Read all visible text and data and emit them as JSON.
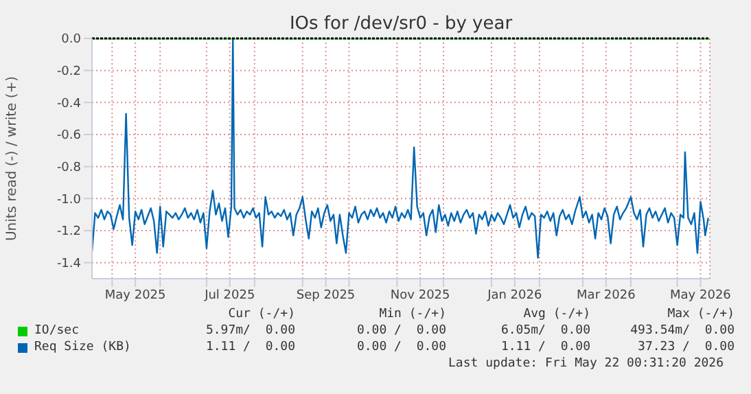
{
  "chart_data": {
    "type": "line",
    "title": "IOs for /dev/sr0 - by year",
    "ylabel": "Units read (-) / write (+)",
    "xlim": [
      "2025-04-18",
      "2026-05-22"
    ],
    "xticks": [
      {
        "value": "2025-05-01",
        "label": null
      },
      {
        "value": "2025-05-16",
        "label": "May 2025"
      },
      {
        "value": "2025-06-01",
        "label": null
      },
      {
        "value": "2025-07-01",
        "label": null
      },
      {
        "value": "2025-07-16",
        "label": "Jul 2025"
      },
      {
        "value": "2025-08-01",
        "label": null
      },
      {
        "value": "2025-09-01",
        "label": null
      },
      {
        "value": "2025-09-16",
        "label": "Sep 2025"
      },
      {
        "value": "2025-10-01",
        "label": null
      },
      {
        "value": "2025-11-01",
        "label": null
      },
      {
        "value": "2025-11-16",
        "label": "Nov 2025"
      },
      {
        "value": "2025-12-01",
        "label": null
      },
      {
        "value": "2026-01-01",
        "label": null
      },
      {
        "value": "2026-01-16",
        "label": "Jan 2026"
      },
      {
        "value": "2026-02-01",
        "label": null
      },
      {
        "value": "2026-03-01",
        "label": null
      },
      {
        "value": "2026-03-16",
        "label": "Mar 2026"
      },
      {
        "value": "2026-04-01",
        "label": null
      },
      {
        "value": "2026-05-01",
        "label": null
      },
      {
        "value": "2026-05-16",
        "label": "May 2026"
      }
    ],
    "ylim": [
      -1.5,
      0
    ],
    "yticks": [
      {
        "value": 0,
        "label": "0.0"
      },
      -0.2,
      -0.4,
      -0.6,
      -0.8,
      {
        "value": -1,
        "label": "-1.0"
      },
      -1.2,
      -1.4
    ],
    "grid": true,
    "legend": "bottom",
    "marker": "none",
    "line_style": "solid",
    "ref_lines": [
      {
        "axis": "y",
        "value": 0,
        "color": "#000000"
      }
    ],
    "annotations": [
      "Cur (-/+)",
      "Min (-/+)",
      "Avg (-/+)",
      "Max (-/+)",
      "5.97m/  0.00",
      "0.00 /  0.00",
      "6.05m/  0.00",
      "493.54m/  0.00",
      "1.11 /  0.00",
      "0.00 /  0.00",
      "1.11 /  0.00",
      "37.23 /  0.00",
      "Last update: Fri May 22 00:31:20 2026"
    ],
    "series": [
      {
        "name": "IO/sec",
        "color": "#00cc00",
        "x": [
          "2025-04-18",
          "2026-05-22"
        ],
        "values": [
          0,
          0
        ]
      },
      {
        "name": "Req Size (KB)",
        "color": "#0066b3",
        "x": [
          "2025-04-18",
          "2025-04-20",
          "2025-04-22",
          "2025-04-24",
          "2025-04-26",
          "2025-04-28",
          "2025-04-30",
          "2025-05-02",
          "2025-05-04",
          "2025-05-06",
          "2025-05-08",
          "2025-05-10",
          "2025-05-12",
          "2025-05-14",
          "2025-05-16",
          "2025-05-18",
          "2025-05-20",
          "2025-05-22",
          "2025-05-24",
          "2025-05-26",
          "2025-05-28",
          "2025-05-30",
          "2025-06-01",
          "2025-06-03",
          "2025-06-05",
          "2025-06-07",
          "2025-06-09",
          "2025-06-11",
          "2025-06-13",
          "2025-06-15",
          "2025-06-17",
          "2025-06-19",
          "2025-06-21",
          "2025-06-23",
          "2025-06-25",
          "2025-06-27",
          "2025-06-29",
          "2025-07-01",
          "2025-07-03",
          "2025-07-05",
          "2025-07-07",
          "2025-07-09",
          "2025-07-11",
          "2025-07-13",
          "2025-07-15",
          "2025-07-17",
          "2025-07-18",
          "2025-07-19",
          "2025-07-21",
          "2025-07-23",
          "2025-07-25",
          "2025-07-27",
          "2025-07-29",
          "2025-07-31",
          "2025-08-02",
          "2025-08-04",
          "2025-08-06",
          "2025-08-08",
          "2025-08-10",
          "2025-08-12",
          "2025-08-14",
          "2025-08-16",
          "2025-08-18",
          "2025-08-20",
          "2025-08-22",
          "2025-08-24",
          "2025-08-26",
          "2025-08-28",
          "2025-08-30",
          "2025-09-01",
          "2025-09-03",
          "2025-09-05",
          "2025-09-07",
          "2025-09-09",
          "2025-09-11",
          "2025-09-13",
          "2025-09-15",
          "2025-09-17",
          "2025-09-19",
          "2025-09-21",
          "2025-09-23",
          "2025-09-25",
          "2025-09-27",
          "2025-09-29",
          "2025-10-01",
          "2025-10-03",
          "2025-10-05",
          "2025-10-07",
          "2025-10-09",
          "2025-10-11",
          "2025-10-13",
          "2025-10-15",
          "2025-10-17",
          "2025-10-19",
          "2025-10-21",
          "2025-10-23",
          "2025-10-25",
          "2025-10-27",
          "2025-10-29",
          "2025-10-31",
          "2025-11-02",
          "2025-11-04",
          "2025-11-06",
          "2025-11-08",
          "2025-11-10",
          "2025-11-12",
          "2025-11-14",
          "2025-11-16",
          "2025-11-18",
          "2025-11-20",
          "2025-11-22",
          "2025-11-24",
          "2025-11-26",
          "2025-11-28",
          "2025-11-30",
          "2025-12-02",
          "2025-12-04",
          "2025-12-06",
          "2025-12-08",
          "2025-12-10",
          "2025-12-12",
          "2025-12-14",
          "2025-12-16",
          "2025-12-18",
          "2025-12-20",
          "2025-12-22",
          "2025-12-24",
          "2025-12-26",
          "2025-12-28",
          "2025-12-30",
          "2026-01-01",
          "2026-01-03",
          "2026-01-05",
          "2026-01-07",
          "2026-01-09",
          "2026-01-11",
          "2026-01-13",
          "2026-01-15",
          "2026-01-17",
          "2026-01-19",
          "2026-01-21",
          "2026-01-23",
          "2026-01-25",
          "2026-01-27",
          "2026-01-29",
          "2026-01-31",
          "2026-02-02",
          "2026-02-04",
          "2026-02-06",
          "2026-02-08",
          "2026-02-10",
          "2026-02-12",
          "2026-02-14",
          "2026-02-16",
          "2026-02-18",
          "2026-02-20",
          "2026-02-22",
          "2026-02-24",
          "2026-02-26",
          "2026-02-27",
          "2026-03-01",
          "2026-03-03",
          "2026-03-05",
          "2026-03-07",
          "2026-03-09",
          "2026-03-11",
          "2026-03-13",
          "2026-03-15",
          "2026-03-17",
          "2026-03-19",
          "2026-03-21",
          "2026-03-23",
          "2026-03-25",
          "2026-03-27",
          "2026-03-29",
          "2026-04-01",
          "2026-04-03",
          "2026-04-05",
          "2026-04-07",
          "2026-04-09",
          "2026-04-11",
          "2026-04-13",
          "2026-04-15",
          "2026-04-17",
          "2026-04-19",
          "2026-04-21",
          "2026-04-23",
          "2026-04-25",
          "2026-04-27",
          "2026-04-29",
          "2026-05-01",
          "2026-05-03",
          "2026-05-05",
          "2026-05-06",
          "2026-05-08",
          "2026-05-10",
          "2026-05-12",
          "2026-05-14",
          "2026-05-16",
          "2026-05-18",
          "2026-05-19",
          "2026-05-21"
        ],
        "values": [
          -1.33,
          -1.09,
          -1.12,
          -1.07,
          -1.13,
          -1.08,
          -1.1,
          -1.19,
          -1.11,
          -1.04,
          -1.13,
          -0.47,
          -1.12,
          -1.29,
          -1.08,
          -1.13,
          -1.07,
          -1.16,
          -1.11,
          -1.06,
          -1.14,
          -1.34,
          -1.05,
          -1.3,
          -1.08,
          -1.1,
          -1.12,
          -1.09,
          -1.13,
          -1.1,
          -1.06,
          -1.12,
          -1.09,
          -1.13,
          -1.07,
          -1.15,
          -1.09,
          -1.31,
          -1.08,
          -0.95,
          -1.1,
          -1.03,
          -1.14,
          -1.06,
          -1.24,
          -1.05,
          0,
          -1.06,
          -1.1,
          -1.07,
          -1.12,
          -1.08,
          -1.1,
          -1.06,
          -1.12,
          -1.09,
          -1.3,
          -0.99,
          -1.1,
          -1.08,
          -1.12,
          -1.09,
          -1.11,
          -1.07,
          -1.13,
          -1.09,
          -1.23,
          -1.1,
          -1.06,
          -0.99,
          -1.13,
          -1.25,
          -1.08,
          -1.12,
          -1.06,
          -1.18,
          -1.09,
          -1.04,
          -1.14,
          -1.1,
          -1.28,
          -1.1,
          -1.23,
          -1.34,
          -1.09,
          -1.12,
          -1.05,
          -1.15,
          -1.1,
          -1.08,
          -1.13,
          -1.07,
          -1.11,
          -1.06,
          -1.12,
          -1.09,
          -1.15,
          -1.08,
          -1.12,
          -1.05,
          -1.14,
          -1.09,
          -1.12,
          -1.07,
          -1.13,
          -0.68,
          -1.05,
          -1.12,
          -1.09,
          -1.23,
          -1.11,
          -1.07,
          -1.21,
          -1.04,
          -1.14,
          -1.1,
          -1.17,
          -1.09,
          -1.14,
          -1.08,
          -1.15,
          -1.1,
          -1.07,
          -1.12,
          -1.09,
          -1.22,
          -1.1,
          -1.13,
          -1.08,
          -1.17,
          -1.1,
          -1.14,
          -1.09,
          -1.12,
          -1.16,
          -1.1,
          -1.04,
          -1.12,
          -1.09,
          -1.18,
          -1.1,
          -1.05,
          -1.13,
          -1.09,
          -1.11,
          -1.37,
          -1.1,
          -1.12,
          -1.08,
          -1.14,
          -1.09,
          -1.23,
          -1.11,
          -1.07,
          -1.13,
          -1.1,
          -1.16,
          -1.08,
          -1.02,
          -0.99,
          -1.12,
          -1.08,
          -1.15,
          -1.1,
          -1.25,
          -1.09,
          -1.13,
          -1.06,
          -1.11,
          -1.28,
          -1.1,
          -1.05,
          -1.13,
          -1.09,
          -1.06,
          -0.99,
          -1.09,
          -1.13,
          -1.07,
          -1.3,
          -1.1,
          -1.06,
          -1.12,
          -1.08,
          -1.14,
          -1.1,
          -1.06,
          -1.15,
          -1.09,
          -1.12,
          -1.29,
          -1.1,
          -1.12,
          -0.71,
          -1.12,
          -1.16,
          -1.09,
          -1.34,
          -1.02,
          -1.13,
          -1.23,
          -1.12
        ]
      }
    ]
  }
}
